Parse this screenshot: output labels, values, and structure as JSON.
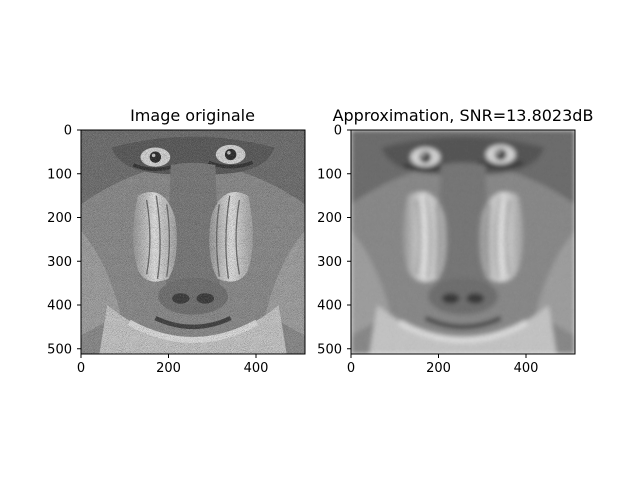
{
  "chart_data": [
    {
      "type": "image",
      "title": "Image originale",
      "xlim": [
        0,
        512
      ],
      "ylim": [
        512,
        0
      ],
      "x_ticks": [
        {
          "value": 0,
          "label": "0"
        },
        {
          "value": 200,
          "label": "200"
        },
        {
          "value": 400,
          "label": "400"
        }
      ],
      "y_ticks": [
        {
          "value": 0,
          "label": "0"
        },
        {
          "value": 100,
          "label": "100"
        },
        {
          "value": 200,
          "label": "200"
        },
        {
          "value": 300,
          "label": "300"
        },
        {
          "value": 400,
          "label": "400"
        },
        {
          "value": 500,
          "label": "500"
        }
      ],
      "colormap": "gray",
      "image_icon": "baboon-face-grayscale",
      "blurred": false
    },
    {
      "type": "image",
      "title": "Approximation, SNR=13.8023dB",
      "xlim": [
        0,
        512
      ],
      "ylim": [
        512,
        0
      ],
      "x_ticks": [
        {
          "value": 0,
          "label": "0"
        },
        {
          "value": 200,
          "label": "200"
        },
        {
          "value": 400,
          "label": "400"
        }
      ],
      "y_ticks": [
        {
          "value": 0,
          "label": "0"
        },
        {
          "value": 100,
          "label": "100"
        },
        {
          "value": 200,
          "label": "200"
        },
        {
          "value": 300,
          "label": "300"
        },
        {
          "value": 400,
          "label": "400"
        },
        {
          "value": 500,
          "label": "500"
        }
      ],
      "colormap": "gray",
      "image_icon": "baboon-face-grayscale-blurred",
      "blurred": true
    }
  ]
}
